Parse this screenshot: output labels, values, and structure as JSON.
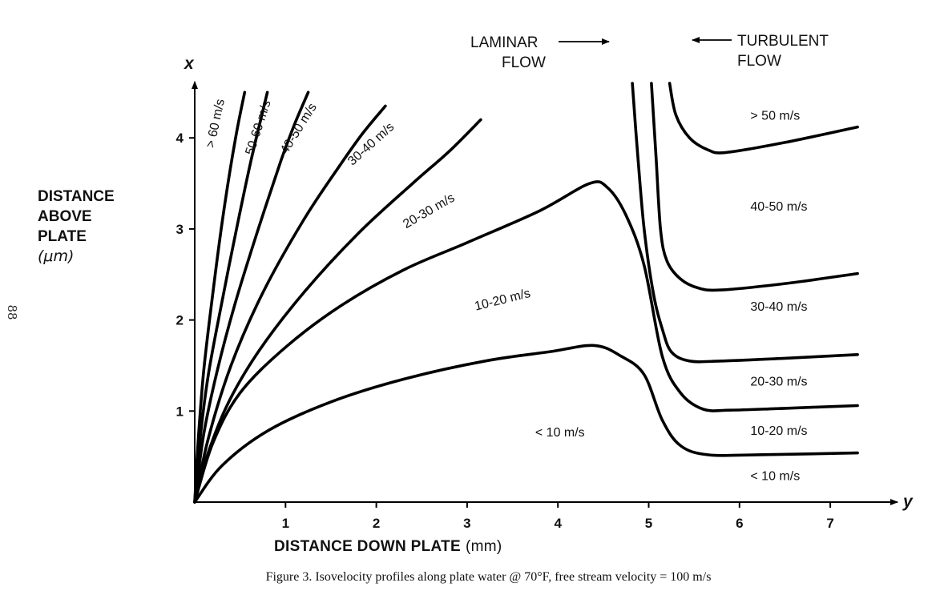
{
  "page": {
    "page_number": "88"
  },
  "caption": "Figure 3. Isovelocity profiles along plate water @ 70°F, free stream velocity  =  100 m/s",
  "chart_data": {
    "type": "line",
    "title": "",
    "xlabel": "DISTANCE DOWN PLATE",
    "xlabel_unit": "(mm)",
    "ylabel_lines": [
      "DISTANCE",
      "ABOVE",
      "PLATE"
    ],
    "ylabel_unit": "(μm)",
    "x_axis_letter": "y",
    "y_axis_letter": "x",
    "xlim": [
      0,
      7.3
    ],
    "ylim": [
      0,
      4.6
    ],
    "x_ticks": [
      "1",
      "2",
      "3",
      "4",
      "5",
      "6",
      "7"
    ],
    "y_ticks": [
      "1",
      "2",
      "3",
      "4"
    ],
    "grid": false,
    "legend": "none",
    "annotations": {
      "laminar": [
        "LAMINAR",
        "FLOW"
      ],
      "turbulent": [
        "TURBULENT",
        "FLOW"
      ]
    },
    "laminar_curves": [
      {
        "label": "> 60 m/s",
        "points": [
          [
            0,
            0
          ],
          [
            0.04,
            0.7
          ],
          [
            0.1,
            1.45
          ],
          [
            0.2,
            2.3
          ],
          [
            0.32,
            3.2
          ],
          [
            0.45,
            4.0
          ],
          [
            0.55,
            4.5
          ]
        ]
      },
      {
        "label": "50-60 m/s",
        "points": [
          [
            0,
            0
          ],
          [
            0.06,
            0.7
          ],
          [
            0.15,
            1.4
          ],
          [
            0.3,
            2.2
          ],
          [
            0.45,
            2.95
          ],
          [
            0.62,
            3.75
          ],
          [
            0.8,
            4.5
          ]
        ]
      },
      {
        "label": "40-50 m/s",
        "points": [
          [
            0,
            0
          ],
          [
            0.1,
            0.75
          ],
          [
            0.25,
            1.45
          ],
          [
            0.45,
            2.2
          ],
          [
            0.7,
            3.0
          ],
          [
            0.95,
            3.75
          ],
          [
            1.1,
            4.15
          ],
          [
            1.25,
            4.5
          ]
        ]
      },
      {
        "label": "30-40 m/s",
        "points": [
          [
            0,
            0
          ],
          [
            0.15,
            0.7
          ],
          [
            0.4,
            1.5
          ],
          [
            0.75,
            2.3
          ],
          [
            1.2,
            3.1
          ],
          [
            1.6,
            3.7
          ],
          [
            1.85,
            4.05
          ],
          [
            2.1,
            4.35
          ]
        ]
      },
      {
        "label": "20-30 m/s",
        "points": [
          [
            0,
            0
          ],
          [
            0.1,
            0.4
          ],
          [
            0.35,
            1.05
          ],
          [
            0.7,
            1.65
          ],
          [
            1.2,
            2.3
          ],
          [
            1.8,
            2.95
          ],
          [
            2.4,
            3.5
          ],
          [
            2.8,
            3.85
          ],
          [
            3.15,
            4.2
          ]
        ]
      }
    ],
    "profile_curves": [
      {
        "label": "10-20 m/s",
        "points": [
          [
            0,
            0
          ],
          [
            0.2,
            0.65
          ],
          [
            0.5,
            1.2
          ],
          [
            1.0,
            1.7
          ],
          [
            1.6,
            2.15
          ],
          [
            2.3,
            2.55
          ],
          [
            3.0,
            2.85
          ],
          [
            3.8,
            3.2
          ],
          [
            4.35,
            3.5
          ],
          [
            4.55,
            3.45
          ],
          [
            4.75,
            3.15
          ],
          [
            4.95,
            2.6
          ],
          [
            5.15,
            1.6
          ],
          [
            5.35,
            1.2
          ],
          [
            5.6,
            1.02
          ],
          [
            5.9,
            1.01
          ],
          [
            6.5,
            1.03
          ],
          [
            7.3,
            1.06
          ]
        ]
      },
      {
        "label": "< 10 m/s",
        "points": [
          [
            0,
            0
          ],
          [
            0.3,
            0.4
          ],
          [
            0.8,
            0.78
          ],
          [
            1.5,
            1.1
          ],
          [
            2.3,
            1.35
          ],
          [
            3.2,
            1.55
          ],
          [
            3.9,
            1.65
          ],
          [
            4.4,
            1.72
          ],
          [
            4.7,
            1.6
          ],
          [
            4.95,
            1.4
          ],
          [
            5.15,
            0.9
          ],
          [
            5.35,
            0.62
          ],
          [
            5.65,
            0.52
          ],
          [
            6.2,
            0.52
          ],
          [
            7.3,
            0.54
          ]
        ]
      }
    ],
    "turbulent_curves": [
      {
        "label": "10-20 m/s | 20-30 m/s",
        "points": [
          [
            4.82,
            4.6
          ],
          [
            4.88,
            3.8
          ],
          [
            4.95,
            3.0
          ],
          [
            5.05,
            2.3
          ],
          [
            5.15,
            1.9
          ],
          [
            5.25,
            1.65
          ],
          [
            5.45,
            1.55
          ],
          [
            5.8,
            1.55
          ],
          [
            6.5,
            1.58
          ],
          [
            7.3,
            1.62
          ]
        ]
      },
      {
        "label": "20-30 m/s | 30-40 m/s",
        "points": [
          [
            5.03,
            4.6
          ],
          [
            5.08,
            3.8
          ],
          [
            5.13,
            3.0
          ],
          [
            5.2,
            2.65
          ],
          [
            5.35,
            2.45
          ],
          [
            5.55,
            2.35
          ],
          [
            5.8,
            2.33
          ],
          [
            6.5,
            2.4
          ],
          [
            7.3,
            2.51
          ]
        ]
      },
      {
        "label": "30-40 m/s | 40-50 m/s",
        "points": [
          [
            5.23,
            4.6
          ],
          [
            5.3,
            4.25
          ],
          [
            5.45,
            4.0
          ],
          [
            5.65,
            3.87
          ],
          [
            5.85,
            3.84
          ],
          [
            6.5,
            3.95
          ],
          [
            7.3,
            4.12
          ]
        ]
      }
    ],
    "region_labels": [
      {
        "text": "> 60 m/s",
        "x": 0.27,
        "y": 4.15,
        "angle": -78
      },
      {
        "text": "50-60 m/s",
        "x": 0.74,
        "y": 4.1,
        "angle": -72
      },
      {
        "text": "40-50 m/s",
        "x": 1.18,
        "y": 4.08,
        "angle": -58
      },
      {
        "text": "30-40 m/s",
        "x": 1.97,
        "y": 3.9,
        "angle": -42
      },
      {
        "text": "20-30 m/s",
        "x": 2.6,
        "y": 3.16,
        "angle": -30
      },
      {
        "text": "10-20 m/s",
        "x": 3.4,
        "y": 2.18,
        "angle": -14
      },
      {
        "text": "< 10 m/s",
        "x": 3.75,
        "y": 0.72,
        "angle": 0
      },
      {
        "text": "> 50 m/s",
        "x": 6.12,
        "y": 4.2,
        "angle": 0
      },
      {
        "text": "40-50 m/s",
        "x": 6.12,
        "y": 3.2,
        "angle": 0
      },
      {
        "text": "30-40 m/s",
        "x": 6.12,
        "y": 2.1,
        "angle": 0
      },
      {
        "text": "20-30 m/s",
        "x": 6.12,
        "y": 1.28,
        "angle": 0
      },
      {
        "text": "10-20 m/s",
        "x": 6.12,
        "y": 0.74,
        "angle": 0
      },
      {
        "text": "< 10 m/s",
        "x": 6.12,
        "y": 0.24,
        "angle": 0
      }
    ]
  }
}
